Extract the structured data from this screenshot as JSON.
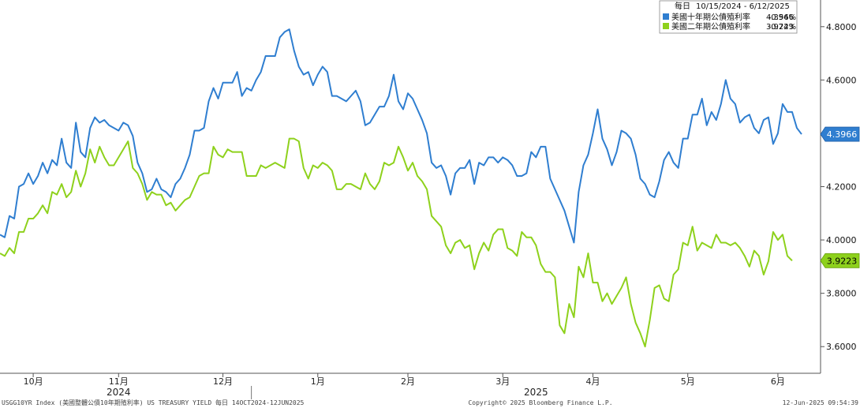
{
  "chart_data": {
    "type": "line",
    "legend": {
      "frequency_label": "每日",
      "date_range": "10/15/2024 - 6/12/2025",
      "placement": "top-right"
    },
    "y_axis": {
      "side": "right",
      "ylim": [
        3.5,
        4.9
      ],
      "ticks": [
        "3.6000",
        "3.8000",
        "4.0000",
        "4.2000",
        "4.4000",
        "4.6000",
        "4.8000"
      ],
      "tick_values": [
        3.6,
        3.8,
        4.0,
        4.2,
        4.4,
        4.6,
        4.8
      ]
    },
    "x_axis": {
      "month_labels": [
        "10月",
        "11月",
        "12月",
        "1月",
        "2月",
        "3月",
        "4月",
        "5月",
        "6月"
      ],
      "month_positions": [
        7,
        25,
        47,
        67,
        86,
        106,
        125,
        145,
        164
      ],
      "year_labels": [
        {
          "text": "2024",
          "pos": 25
        },
        {
          "text": "2025",
          "pos": 113
        }
      ],
      "year_divider_pos": 53,
      "xlim": [
        0,
        170
      ]
    },
    "grid": false,
    "series": [
      {
        "name": "美國十年期公債殖利率",
        "color": "#2f7ed0",
        "last_value": "4.3966",
        "change": "-0.54%",
        "values": [
          4.02,
          4.01,
          4.09,
          4.08,
          4.2,
          4.21,
          4.25,
          4.21,
          4.24,
          4.29,
          4.25,
          4.3,
          4.28,
          4.38,
          4.29,
          4.27,
          4.44,
          4.33,
          4.31,
          4.42,
          4.46,
          4.44,
          4.45,
          4.43,
          4.42,
          4.41,
          4.44,
          4.43,
          4.39,
          4.29,
          4.25,
          4.18,
          4.19,
          4.23,
          4.19,
          4.18,
          4.16,
          4.21,
          4.23,
          4.27,
          4.32,
          4.41,
          4.41,
          4.42,
          4.52,
          4.57,
          4.53,
          4.59,
          4.59,
          4.59,
          4.63,
          4.54,
          4.57,
          4.56,
          4.6,
          4.63,
          4.69,
          4.69,
          4.69,
          4.76,
          4.78,
          4.79,
          4.71,
          4.65,
          4.62,
          4.63,
          4.58,
          4.62,
          4.65,
          4.63,
          4.54,
          4.54,
          4.53,
          4.52,
          4.54,
          4.56,
          4.52,
          4.43,
          4.44,
          4.47,
          4.5,
          4.5,
          4.54,
          4.62,
          4.52,
          4.49,
          4.55,
          4.53,
          4.49,
          4.45,
          4.4,
          4.29,
          4.27,
          4.28,
          4.24,
          4.17,
          4.25,
          4.27,
          4.27,
          4.3,
          4.21,
          4.29,
          4.28,
          4.31,
          4.31,
          4.29,
          4.31,
          4.3,
          4.28,
          4.24,
          4.24,
          4.25,
          4.33,
          4.31,
          4.35,
          4.35,
          4.23,
          4.19,
          4.15,
          4.11,
          4.05,
          3.99,
          4.18,
          4.28,
          4.32,
          4.4,
          4.49,
          4.38,
          4.34,
          4.28,
          4.33,
          4.41,
          4.4,
          4.38,
          4.32,
          4.23,
          4.21,
          4.17,
          4.16,
          4.22,
          4.3,
          4.33,
          4.29,
          4.27,
          4.38,
          4.38,
          4.47,
          4.47,
          4.53,
          4.43,
          4.48,
          4.45,
          4.51,
          4.6,
          4.53,
          4.51,
          4.44,
          4.46,
          4.47,
          4.42,
          4.4,
          4.45,
          4.46,
          4.36,
          4.4,
          4.51,
          4.48,
          4.48,
          4.42,
          4.3966
        ]
      },
      {
        "name": "美國二年期公債殖利率",
        "color": "#8ed11c",
        "last_value": "3.9223",
        "change": "-0.74%",
        "values": [
          3.95,
          3.94,
          3.97,
          3.95,
          4.03,
          4.03,
          4.08,
          4.08,
          4.1,
          4.13,
          4.1,
          4.18,
          4.17,
          4.21,
          4.16,
          4.18,
          4.26,
          4.2,
          4.25,
          4.34,
          4.29,
          4.35,
          4.31,
          4.28,
          4.28,
          4.31,
          4.34,
          4.37,
          4.27,
          4.25,
          4.21,
          4.15,
          4.18,
          4.17,
          4.17,
          4.13,
          4.14,
          4.11,
          4.13,
          4.15,
          4.16,
          4.2,
          4.24,
          4.25,
          4.25,
          4.35,
          4.32,
          4.31,
          4.34,
          4.33,
          4.33,
          4.33,
          4.24,
          4.24,
          4.24,
          4.28,
          4.27,
          4.28,
          4.29,
          4.28,
          4.27,
          4.38,
          4.38,
          4.37,
          4.27,
          4.23,
          4.28,
          4.27,
          4.29,
          4.28,
          4.26,
          4.19,
          4.19,
          4.21,
          4.21,
          4.2,
          4.19,
          4.25,
          4.21,
          4.19,
          4.22,
          4.29,
          4.28,
          4.29,
          4.35,
          4.31,
          4.26,
          4.29,
          4.24,
          4.22,
          4.19,
          4.09,
          4.07,
          4.05,
          3.98,
          3.95,
          3.99,
          4.0,
          3.97,
          3.98,
          3.89,
          3.95,
          3.99,
          3.96,
          4.02,
          4.04,
          4.04,
          3.97,
          3.96,
          3.94,
          4.03,
          4.01,
          4.01,
          3.98,
          3.91,
          3.88,
          3.88,
          3.86,
          3.68,
          3.65,
          3.76,
          3.71,
          3.9,
          3.86,
          3.95,
          3.84,
          3.84,
          3.77,
          3.8,
          3.76,
          3.79,
          3.82,
          3.86,
          3.76,
          3.69,
          3.65,
          3.6,
          3.7,
          3.82,
          3.83,
          3.78,
          3.77,
          3.87,
          3.89,
          3.99,
          3.98,
          4.05,
          3.96,
          3.99,
          3.98,
          3.97,
          4.02,
          3.99,
          3.99,
          3.98,
          3.99,
          3.97,
          3.94,
          3.9,
          3.96,
          3.94,
          3.87,
          3.92,
          4.03,
          4.0,
          4.02,
          3.94,
          3.9223
        ]
      }
    ]
  },
  "footer": {
    "left": "USGG10YR Index (美國整體公債10年期殖利率) US TREASURY YIELD  每日 14OCT2024-12JUN2025",
    "center": "Copyright© 2025 Bloomberg Finance L.P.",
    "right": "12-Jun-2025 09:54:39"
  }
}
